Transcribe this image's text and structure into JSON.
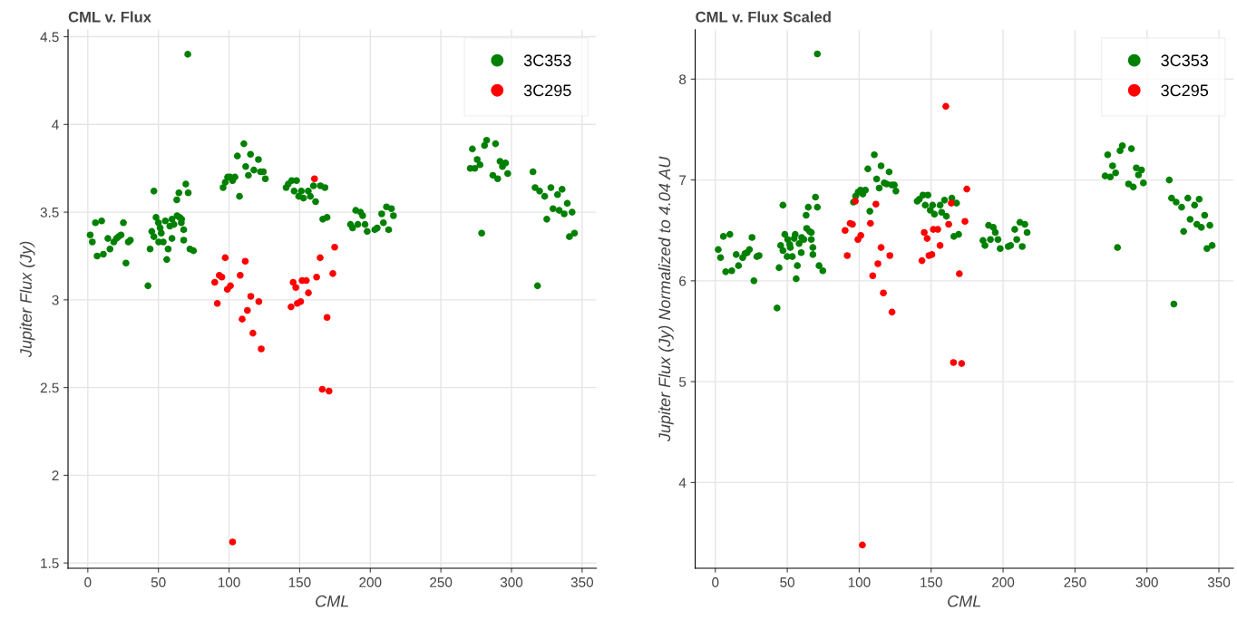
{
  "chart_data": [
    {
      "type": "scatter",
      "title": "CML v. Flux",
      "xlabel": "CML",
      "ylabel": "Jupiter Flux (Jy)",
      "xlim": [
        -14,
        360
      ],
      "ylim": [
        1.47,
        4.54
      ],
      "xticks": [
        0,
        50,
        100,
        150,
        200,
        250,
        300,
        350
      ],
      "yticks": [
        1.5,
        2,
        2.5,
        3,
        3.5,
        4,
        4.5
      ],
      "grid": true,
      "legend": "top right",
      "marker": "circle",
      "series": [
        {
          "name": "3C353",
          "color": "#008000",
          "x": [
            1.7,
            3.2,
            5.4,
            6.6,
            9.8,
            11,
            14.2,
            15.7,
            18.4,
            20.3,
            21.8,
            23.5,
            25.2,
            27,
            28.7,
            30.1,
            42.6,
            44.1,
            45.3,
            46.8,
            46.8,
            48.3,
            50,
            50.2,
            51.2,
            52,
            53.4,
            54.9,
            55.9,
            56.9,
            58.1,
            59.6,
            59.6,
            61,
            63,
            63.2,
            64.5,
            65,
            66.2,
            66.4,
            67.9,
            67.9,
            69.4,
            70.8,
            71.1,
            72.3,
            74.8,
            95.8,
            97.3,
            99,
            100.7,
            102.5,
            104.2,
            105.9,
            107.4,
            110.5,
            111.8,
            113.7,
            115.2,
            117.6,
            120.8,
            122.3,
            124.3,
            125.7,
            140.4,
            141.9,
            144.4,
            146.1,
            147.8,
            149.3,
            151.2,
            152.7,
            156.1,
            157.6,
            159.8,
            161.3,
            164.7,
            167.9,
            166.4,
            169.4,
            186,
            187.5,
            189.7,
            191.2,
            193.1,
            194.6,
            196.3,
            197.8,
            203.2,
            204.9,
            208.1,
            209.3,
            211.5,
            213,
            215,
            216.4,
            270.8,
            272.3,
            274,
            275.7,
            277.7,
            278.9,
            280.9,
            282.4,
            286.8,
            288.7,
            290.2,
            291.9,
            293.6,
            295.8,
            297.3,
            315.2,
            316.7,
            318.4,
            319.9,
            323.5,
            325,
            327.9,
            329.4,
            332.6,
            333.8,
            335.8,
            337.3,
            339.5,
            341,
            342.9,
            344.6
          ],
          "values": [
            3.37,
            3.33,
            3.44,
            3.25,
            3.45,
            3.26,
            3.35,
            3.29,
            3.33,
            3.35,
            3.36,
            3.37,
            3.44,
            3.21,
            3.33,
            3.34,
            3.08,
            3.29,
            3.39,
            3.62,
            3.36,
            3.47,
            3.44,
            3.33,
            3.41,
            3.38,
            3.33,
            3.45,
            3.23,
            3.29,
            3.42,
            3.46,
            3.35,
            3.43,
            3.57,
            3.48,
            3.61,
            3.47,
            3.44,
            3.46,
            3.4,
            3.34,
            3.66,
            4.4,
            3.61,
            3.29,
            3.28,
            3.64,
            3.67,
            3.7,
            3.7,
            3.68,
            3.7,
            3.82,
            3.59,
            3.89,
            3.76,
            3.71,
            3.83,
            3.74,
            3.8,
            3.73,
            3.73,
            3.69,
            3.64,
            3.66,
            3.68,
            3.62,
            3.68,
            3.59,
            3.62,
            3.58,
            3.62,
            3.59,
            3.65,
            3.56,
            3.65,
            3.64,
            3.46,
            3.47,
            3.43,
            3.41,
            3.51,
            3.43,
            3.5,
            3.48,
            3.43,
            3.39,
            3.4,
            3.41,
            3.49,
            3.44,
            3.53,
            3.4,
            3.52,
            3.48,
            3.75,
            3.86,
            3.75,
            3.8,
            3.77,
            3.38,
            3.88,
            3.91,
            3.71,
            3.89,
            3.69,
            3.79,
            3.76,
            3.78,
            3.72,
            3.73,
            3.64,
            3.08,
            3.62,
            3.59,
            3.46,
            3.64,
            3.52,
            3.6,
            3.51,
            3.63,
            3.49,
            3.55,
            3.36,
            3.5,
            3.38
          ]
        },
        {
          "name": "3C295",
          "color": "#ff0000",
          "x": [
            160.5,
            89.9,
            91.7,
            93.1,
            94.9,
            97.3,
            98.8,
            101,
            102.5,
            107.9,
            109.3,
            111.5,
            113,
            115.4,
            116.9,
            121.1,
            122.8,
            143.9,
            145.4,
            147.3,
            148.3,
            150.7,
            151.7,
            154.7,
            156.2,
            162,
            164.5,
            166,
            170.8,
            169.4,
            173.5,
            174.8
          ],
          "values": [
            3.69,
            3.1,
            2.98,
            3.14,
            3.13,
            3.24,
            3.06,
            3.08,
            1.62,
            3.14,
            2.89,
            3.22,
            2.94,
            3.02,
            2.81,
            2.99,
            2.72,
            2.96,
            3.1,
            3.07,
            2.98,
            2.99,
            3.11,
            3.11,
            3.04,
            3.13,
            3.24,
            2.49,
            2.48,
            2.9,
            3.15,
            3.3
          ]
        }
      ]
    },
    {
      "type": "scatter",
      "title": "CML v. Flux Scaled",
      "xlabel": "CML",
      "ylabel": "Jupiter Flux (Jy) Normalized to 4.04 AU",
      "xlim": [
        -14,
        360
      ],
      "ylim": [
        3.15,
        8.49
      ],
      "xticks": [
        0,
        50,
        100,
        150,
        200,
        250,
        300,
        350
      ],
      "yticks": [
        4,
        5,
        6,
        7,
        8
      ],
      "grid": true,
      "legend": "top right",
      "marker": "circle",
      "series": [
        {
          "name": "3C353",
          "color": "#008000",
          "x": [
            2,
            3.6,
            5.6,
            7.2,
            10.1,
            11.4,
            14.5,
            16.1,
            19,
            20.6,
            22.1,
            23.7,
            25.5,
            26.8,
            28.9,
            30.4,
            42.9,
            44.3,
            45.4,
            47,
            47,
            48.3,
            49.9,
            50.3,
            51.7,
            52.1,
            53.5,
            54.8,
            55.5,
            56.2,
            57,
            58.2,
            59.7,
            60,
            61.5,
            63.1,
            63.5,
            64.6,
            65.5,
            66.7,
            66.7,
            67.8,
            67.8,
            69.6,
            70.9,
            70.9,
            72.1,
            74.7,
            96,
            97.5,
            99.3,
            100.9,
            102.5,
            104.3,
            106,
            107.4,
            110.5,
            112.1,
            113.9,
            115.2,
            117.4,
            120.8,
            119,
            122.6,
            124.4,
            125.5,
            140.3,
            141.8,
            144.3,
            145.9,
            147.7,
            149.4,
            151,
            152.3,
            156.2,
            157.3,
            159.3,
            160.6,
            164.4,
            167.6,
            165.8,
            169.1,
            186,
            187.4,
            189.9,
            191.2,
            193.2,
            194.6,
            196.4,
            198,
            203.6,
            205.2,
            208.1,
            209.5,
            211.7,
            213.3,
            215.1,
            216.7,
            270.9,
            272.7,
            274.5,
            276.1,
            278.2,
            279.5,
            281.3,
            282.9,
            287.2,
            289.2,
            290.5,
            292.6,
            294.1,
            296.2,
            297.5,
            315.5,
            317.1,
            318.7,
            320.3,
            324.1,
            325.5,
            328.4,
            330,
            333.1,
            334.7,
            336.3,
            337.8,
            340.1,
            341.7,
            343.7,
            345.3
          ],
          "values": [
            6.31,
            6.23,
            6.44,
            6.09,
            6.46,
            6.1,
            6.26,
            6.15,
            6.23,
            6.27,
            6.28,
            6.31,
            6.43,
            6.0,
            6.24,
            6.25,
            5.73,
            6.13,
            6.35,
            6.75,
            6.3,
            6.46,
            6.24,
            6.41,
            6.36,
            6.33,
            6.24,
            6.42,
            6.46,
            6.02,
            6.15,
            6.37,
            6.28,
            6.43,
            6.41,
            6.65,
            6.52,
            6.73,
            6.49,
            6.41,
            6.48,
            6.33,
            6.26,
            6.83,
            8.25,
            6.73,
            6.15,
            6.1,
            6.78,
            6.84,
            6.88,
            6.9,
            6.86,
            6.9,
            7.11,
            6.69,
            7.25,
            7.01,
            6.92,
            7.14,
            6.97,
            7.08,
            6.96,
            6.95,
            6.95,
            6.89,
            6.79,
            6.81,
            6.85,
            6.75,
            6.85,
            6.7,
            6.75,
            6.66,
            6.75,
            6.68,
            6.8,
            6.64,
            6.82,
            6.77,
            6.44,
            6.46,
            6.4,
            6.35,
            6.55,
            6.41,
            6.53,
            6.48,
            6.41,
            6.32,
            6.34,
            6.35,
            6.51,
            6.41,
            6.58,
            6.34,
            6.56,
            6.48,
            7.04,
            7.25,
            7.03,
            7.14,
            7.07,
            6.33,
            7.29,
            7.34,
            6.96,
            7.31,
            6.93,
            7.12,
            7.05,
            7.1,
            6.97,
            7.0,
            6.82,
            5.77,
            6.78,
            6.73,
            6.49,
            6.82,
            6.61,
            6.75,
            6.56,
            6.81,
            6.53,
            6.65,
            6.32,
            6.55,
            6.35
          ]
        },
        {
          "name": "3C295",
          "color": "#ff0000",
          "x": [
            97.3,
            90.2,
            91.7,
            93.7,
            95.3,
            99.1,
            101.1,
            102.2,
            107.8,
            111.6,
            109.4,
            113,
            115.2,
            116.8,
            121.3,
            122.8,
            143.6,
            145.2,
            147.2,
            148.5,
            150.5,
            151.5,
            154.6,
            156.2,
            160.2,
            162.2,
            164,
            174.8,
            173.5,
            169.6,
            165.5,
            171.2
          ],
          "values": [
            6.79,
            6.5,
            6.25,
            6.57,
            6.56,
            6.41,
            6.45,
            3.38,
            6.57,
            6.76,
            6.05,
            6.17,
            6.33,
            5.88,
            6.25,
            5.69,
            6.2,
            6.48,
            6.42,
            6.25,
            6.26,
            6.51,
            6.51,
            6.35,
            7.73,
            6.56,
            6.77,
            6.91,
            6.59,
            6.07,
            5.19,
            5.18
          ]
        }
      ]
    }
  ]
}
